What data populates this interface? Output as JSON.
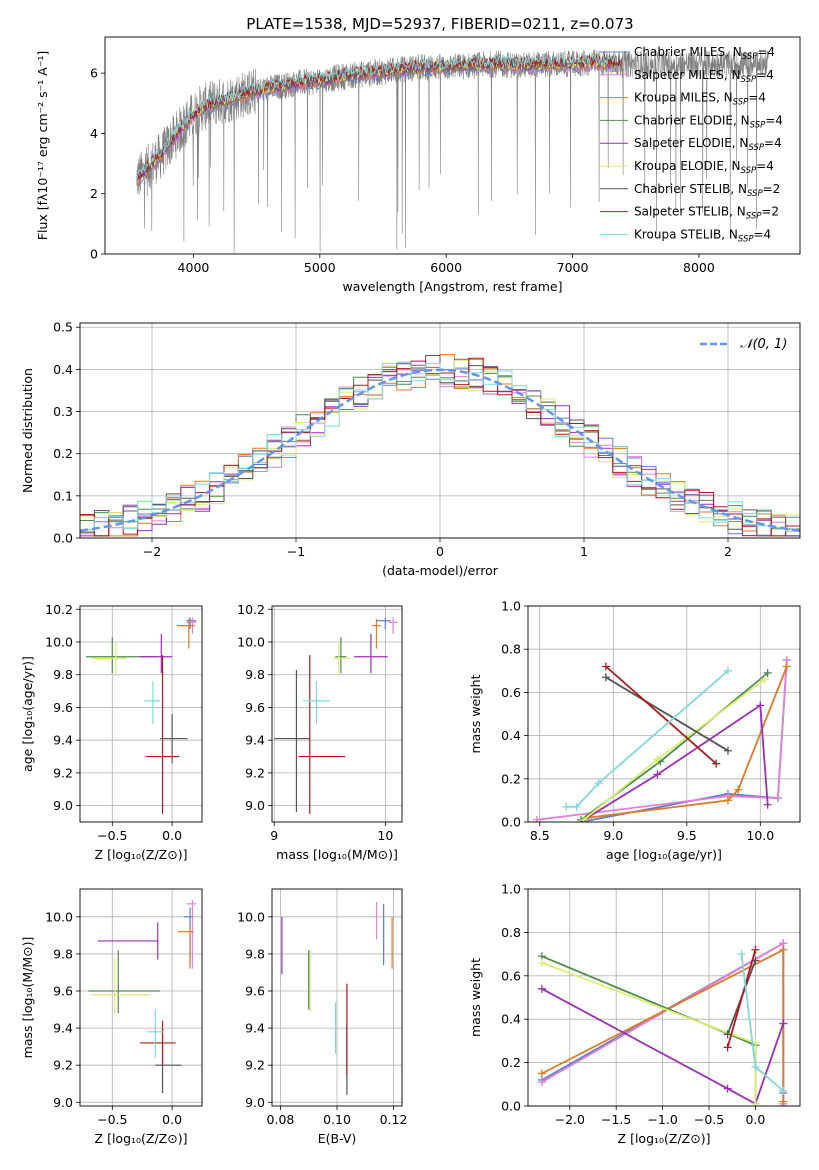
{
  "title": "PLATE=1538, MJD=52937, FIBERID=0211, z=0.073",
  "colors": {
    "chabrier_miles": "#5a7fcf",
    "salpeter_miles": "#e57ed8",
    "kroupa_miles": "#e07a22",
    "chabrier_elodie": "#4f8a4f",
    "salpeter_elodie": "#9b30b5",
    "kroupa_elodie": "#d8ef6e",
    "chabrier_stelib": "#555555",
    "salpeter_stelib": "#b5171c",
    "kroupa_stelib": "#7fd8dc",
    "data": "#808080",
    "normal": "#6495ed",
    "grid": "#b0b0b0"
  },
  "chart_data": [
    {
      "type": "line",
      "name": "spectrum",
      "xlabel": "wavelength [Angstrom, rest frame]",
      "ylabel": "Flux [fλ10⁻¹⁷ erg cm⁻² s⁻¹ A⁻¹]",
      "xlim": [
        3300,
        8800
      ],
      "ylim": [
        0,
        7.2
      ],
      "xticks": [
        4000,
        5000,
        6000,
        7000,
        8000
      ],
      "yticks": [
        0,
        2,
        4,
        6
      ],
      "grid": false,
      "legend": "top-right",
      "legend_entries": [
        "Chabrier MILES, N_SSP=4",
        "Salpeter MILES, N_SSP=4",
        "Kroupa MILES, N_SSP=4",
        "Chabrier ELODIE, N_SSP=4",
        "Salpeter ELODIE, N_SSP=4",
        "Kroupa ELODIE, N_SSP=4",
        "Chabrier STELIB, N_SSP=2",
        "Salpeter STELIB, N_SSP=2",
        "Kroupa STELIB, N_SSP=4"
      ],
      "continuum": {
        "x": [
          3550,
          3650,
          3750,
          3850,
          3950,
          4050,
          4150,
          4250,
          4400,
          4600,
          4800,
          5000,
          5200,
          5400,
          5600,
          5800,
          6000,
          6200,
          6400,
          6600,
          6800,
          7000,
          7200,
          7400
        ],
        "y": [
          2.5,
          2.9,
          3.3,
          3.9,
          4.4,
          4.8,
          5.0,
          5.1,
          5.3,
          5.5,
          5.65,
          5.75,
          5.9,
          6.0,
          6.1,
          6.2,
          6.2,
          6.25,
          6.3,
          6.25,
          6.3,
          6.3,
          6.35,
          6.3
        ]
      },
      "data_range": [
        3550,
        8550
      ]
    },
    {
      "type": "histogram",
      "name": "residuals",
      "xlabel": "(data-model)/error",
      "ylabel": "Normed distribution",
      "xlim": [
        -2.5,
        2.5
      ],
      "ylim": [
        0,
        0.51
      ],
      "xticks": [
        -2,
        -1,
        0,
        1,
        2
      ],
      "yticks": [
        0.0,
        0.1,
        0.2,
        0.3,
        0.4,
        0.5
      ],
      "grid": true,
      "legend": "top-right",
      "legend_entries": [
        "𝒩(0, 1)"
      ],
      "bin_width": 0.1,
      "normal": {
        "mean": 0,
        "sigma": 1
      }
    },
    {
      "type": "scatter",
      "name": "Z-age",
      "xlabel": "Z [log₁₀(Z/Z⊙)]",
      "ylabel": "age  [log₁₀(age/yr)]",
      "xlim": [
        -0.77,
        0.25
      ],
      "ylim": [
        8.9,
        10.22
      ],
      "xticks": [
        -0.5,
        0.0
      ],
      "yticks": [
        9.0,
        9.2,
        9.4,
        9.6,
        9.8,
        10.0,
        10.2
      ],
      "grid": true,
      "points": [
        {
          "model": "chabrier_miles",
          "x": 0.15,
          "y": 10.13,
          "xerr": [
            0.03,
            0.05
          ],
          "yerr": [
            0.05,
            0.02
          ]
        },
        {
          "model": "salpeter_miles",
          "x": 0.17,
          "y": 10.12,
          "xerr": [
            0.05,
            0.03
          ],
          "yerr": [
            0.07,
            0.03
          ]
        },
        {
          "model": "kroupa_miles",
          "x": 0.14,
          "y": 10.1,
          "xerr": [
            0.1,
            0.05
          ],
          "yerr": [
            0.14,
            0.04
          ]
        },
        {
          "model": "chabrier_elodie",
          "x": -0.5,
          "y": 9.91,
          "xerr": [
            0.22,
            0.38
          ],
          "yerr": [
            0.1,
            0.12
          ]
        },
        {
          "model": "salpeter_elodie",
          "x": -0.09,
          "y": 9.91,
          "xerr": [
            0.18,
            0.09
          ],
          "yerr": [
            0.1,
            0.14
          ]
        },
        {
          "model": "kroupa_elodie",
          "x": -0.47,
          "y": 9.9,
          "xerr": [
            0.2,
            0.09
          ],
          "yerr": [
            0.1,
            0.1
          ]
        },
        {
          "model": "chabrier_stelib",
          "x": 0.0,
          "y": 9.41,
          "xerr": [
            0.1,
            0.13
          ],
          "yerr": [
            0.15,
            0.15
          ]
        },
        {
          "model": "salpeter_stelib",
          "x": -0.08,
          "y": 9.3,
          "xerr": [
            0.14,
            0.14
          ],
          "yerr": [
            0.35,
            0.62
          ]
        },
        {
          "model": "kroupa_stelib",
          "x": -0.16,
          "y": 9.64,
          "xerr": [
            0.07,
            0.06
          ],
          "yerr": [
            0.14,
            0.12
          ]
        }
      ]
    },
    {
      "type": "scatter",
      "name": "mass-age",
      "xlabel": "mass [log₁₀(M/M⊙)]",
      "ylabel": "",
      "xlim": [
        8.98,
        10.15
      ],
      "ylim": [
        8.9,
        10.22
      ],
      "xticks": [
        9,
        10
      ],
      "yticks": [
        9.0,
        9.2,
        9.4,
        9.6,
        9.8,
        10.0,
        10.2
      ],
      "grid": true,
      "points": [
        {
          "model": "chabrier_miles",
          "x": 10.0,
          "y": 10.13,
          "xerr": [
            0.08,
            0.05
          ],
          "yerr": [
            0.05,
            0.02
          ]
        },
        {
          "model": "salpeter_miles",
          "x": 10.07,
          "y": 10.12,
          "xerr": [
            0.04,
            0.04
          ],
          "yerr": [
            0.07,
            0.03
          ]
        },
        {
          "model": "kroupa_miles",
          "x": 9.92,
          "y": 10.1,
          "xerr": [
            0.04,
            0.04
          ],
          "yerr": [
            0.14,
            0.04
          ]
        },
        {
          "model": "chabrier_elodie",
          "x": 9.6,
          "y": 9.91,
          "xerr": [
            0.05,
            0.05
          ],
          "yerr": [
            0.1,
            0.12
          ]
        },
        {
          "model": "salpeter_elodie",
          "x": 9.87,
          "y": 9.91,
          "xerr": [
            0.15,
            0.15
          ],
          "yerr": [
            0.1,
            0.14
          ]
        },
        {
          "model": "kroupa_elodie",
          "x": 9.58,
          "y": 9.9,
          "xerr": [
            0.05,
            0.1
          ],
          "yerr": [
            0.1,
            0.1
          ]
        },
        {
          "model": "chabrier_stelib",
          "x": 9.2,
          "y": 9.41,
          "xerr": [
            0.2,
            0.12
          ],
          "yerr": [
            0.45,
            0.42
          ]
        },
        {
          "model": "salpeter_stelib",
          "x": 9.32,
          "y": 9.3,
          "xerr": [
            0.1,
            0.32
          ],
          "yerr": [
            0.35,
            0.62
          ]
        },
        {
          "model": "kroupa_stelib",
          "x": 9.38,
          "y": 9.64,
          "xerr": [
            0.12,
            0.12
          ],
          "yerr": [
            0.14,
            0.12
          ]
        }
      ]
    },
    {
      "type": "line",
      "name": "age-weight",
      "xlabel": "age  [log₁₀(age/yr)]",
      "ylabel": "mass weight",
      "xlim": [
        8.42,
        10.27
      ],
      "ylim": [
        0,
        1.0
      ],
      "xticks": [
        8.5,
        9.0,
        9.5,
        10.0
      ],
      "yticks": [
        0.0,
        0.2,
        0.4,
        0.6,
        0.8,
        1.0
      ],
      "grid": true,
      "series": [
        {
          "model": "chabrier_miles",
          "x": [
            8.78,
            9.78,
            10.12,
            10.18
          ],
          "y": [
            0.0,
            0.13,
            0.11,
            0.75
          ]
        },
        {
          "model": "salpeter_miles",
          "x": [
            8.48,
            9.78,
            10.12,
            10.18
          ],
          "y": [
            0.01,
            0.12,
            0.11,
            0.75
          ]
        },
        {
          "model": "kroupa_miles",
          "x": [
            8.83,
            9.78,
            9.85,
            10.18
          ],
          "y": [
            0.02,
            0.1,
            0.15,
            0.72
          ]
        },
        {
          "model": "chabrier_elodie",
          "x": [
            8.78,
            9.32,
            10.05
          ],
          "y": [
            0.01,
            0.28,
            0.69
          ]
        },
        {
          "model": "salpeter_elodie",
          "x": [
            8.8,
            9.3,
            10.0,
            10.05
          ],
          "y": [
            0.01,
            0.22,
            0.54,
            0.08
          ]
        },
        {
          "model": "kroupa_elodie",
          "x": [
            8.8,
            9.3,
            10.03
          ],
          "y": [
            0.01,
            0.29,
            0.66
          ]
        },
        {
          "model": "chabrier_stelib",
          "x": [
            8.95,
            9.78
          ],
          "y": [
            0.67,
            0.33
          ]
        },
        {
          "model": "salpeter_stelib",
          "x": [
            8.95,
            9.7
          ],
          "y": [
            0.72,
            0.27
          ]
        },
        {
          "model": "kroupa_stelib",
          "x": [
            8.68,
            8.75,
            8.9,
            9.78
          ],
          "y": [
            0.07,
            0.07,
            0.18,
            0.7
          ]
        }
      ]
    },
    {
      "type": "scatter",
      "name": "Z-mass",
      "xlabel": "Z [log₁₀(Z/Z⊙)]",
      "ylabel": "mass [log₁₀(M/M⊙)]",
      "xlim": [
        -0.77,
        0.25
      ],
      "ylim": [
        8.98,
        10.15
      ],
      "xticks": [
        -0.5,
        0.0
      ],
      "yticks": [
        9.0,
        9.2,
        9.4,
        9.6,
        9.8,
        10.0
      ],
      "grid": true,
      "points": [
        {
          "model": "chabrier_miles",
          "x": 0.15,
          "y": 10.0,
          "xerr": [
            0.05,
            0.03
          ],
          "yerr": [
            0.26,
            0.05
          ]
        },
        {
          "model": "salpeter_miles",
          "x": 0.17,
          "y": 10.07,
          "xerr": [
            0.05,
            0.03
          ],
          "yerr": [
            0.35,
            0.02
          ]
        },
        {
          "model": "kroupa_miles",
          "x": 0.15,
          "y": 9.92,
          "xerr": [
            0.1,
            0.03
          ],
          "yerr": [
            0.2,
            0.02
          ]
        },
        {
          "model": "chabrier_elodie",
          "x": -0.45,
          "y": 9.6,
          "xerr": [
            0.25,
            0.35
          ],
          "yerr": [
            0.12,
            0.22
          ]
        },
        {
          "model": "salpeter_elodie",
          "x": -0.12,
          "y": 9.87,
          "xerr": [
            0.5,
            0.0
          ],
          "yerr": [
            0.1,
            0.1
          ]
        },
        {
          "model": "kroupa_elodie",
          "x": -0.48,
          "y": 9.58,
          "xerr": [
            0.2,
            0.3
          ],
          "yerr": [
            0.1,
            0.2
          ]
        },
        {
          "model": "chabrier_stelib",
          "x": -0.08,
          "y": 9.2,
          "xerr": [
            0.06,
            0.16
          ],
          "yerr": [
            0.15,
            0.2
          ]
        },
        {
          "model": "salpeter_stelib",
          "x": -0.08,
          "y": 9.32,
          "xerr": [
            0.19,
            0.11
          ],
          "yerr": [
            0.12,
            0.12
          ]
        },
        {
          "model": "kroupa_stelib",
          "x": -0.14,
          "y": 9.38,
          "xerr": [
            0.07,
            0.07
          ],
          "yerr": [
            0.14,
            0.12
          ]
        }
      ]
    },
    {
      "type": "scatter",
      "name": "ebv-mass",
      "xlabel": "E(B-V)",
      "ylabel": "",
      "xlim": [
        0.077,
        0.123
      ],
      "ylim": [
        8.98,
        10.15
      ],
      "xticks": [
        0.08,
        0.1,
        0.12
      ],
      "yticks": [
        9.0,
        9.2,
        9.4,
        9.6,
        9.8,
        10.0
      ],
      "grid": true,
      "points": [
        {
          "model": "chabrier_miles",
          "x": 0.1165,
          "y": 9.9,
          "xerr": [
            0,
            0
          ],
          "yerr": [
            0.16,
            0.17
          ]
        },
        {
          "model": "salpeter_miles",
          "x": 0.114,
          "y": 9.94,
          "xerr": [
            0,
            0
          ],
          "yerr": [
            0.06,
            0.14
          ]
        },
        {
          "model": "kroupa_miles",
          "x": 0.1195,
          "y": 9.86,
          "xerr": [
            0,
            0
          ],
          "yerr": [
            0.14,
            0.14
          ]
        },
        {
          "model": "chabrier_elodie",
          "x": 0.09,
          "y": 9.7,
          "xerr": [
            0,
            0
          ],
          "yerr": [
            0.2,
            0.12
          ]
        },
        {
          "model": "salpeter_elodie",
          "x": 0.0805,
          "y": 9.85,
          "xerr": [
            0,
            0
          ],
          "yerr": [
            0.16,
            0.15
          ]
        },
        {
          "model": "kroupa_elodie",
          "x": 0.0905,
          "y": 9.65,
          "xerr": [
            0,
            0
          ],
          "yerr": [
            0.16,
            0.17
          ]
        },
        {
          "model": "chabrier_stelib",
          "x": 0.1035,
          "y": 9.22,
          "xerr": [
            0,
            0
          ],
          "yerr": [
            0.18,
            0.2
          ]
        },
        {
          "model": "salpeter_stelib",
          "x": 0.1035,
          "y": 9.35,
          "xerr": [
            0,
            0
          ],
          "yerr": [
            0.2,
            0.29
          ]
        },
        {
          "model": "kroupa_stelib",
          "x": 0.0995,
          "y": 9.4,
          "xerr": [
            0,
            0
          ],
          "yerr": [
            0.14,
            0.14
          ]
        }
      ]
    },
    {
      "type": "line",
      "name": "Z-weight",
      "xlabel": "Z [log₁₀(Z/Z⊙)]",
      "ylabel": "mass weight",
      "xlim": [
        -2.45,
        0.48
      ],
      "ylim": [
        0,
        1.0
      ],
      "xticks": [
        -2.0,
        -1.5,
        -1.0,
        -0.5,
        0.0
      ],
      "yticks": [
        0.0,
        0.2,
        0.4,
        0.6,
        0.8,
        1.0
      ],
      "grid": true,
      "series": [
        {
          "model": "chabrier_miles",
          "x": [
            -2.3,
            0.3,
            0.3,
            0.3
          ],
          "y": [
            0.12,
            0.75,
            0.06,
            0.0
          ]
        },
        {
          "model": "salpeter_miles",
          "x": [
            -2.3,
            0.3,
            0.3
          ],
          "y": [
            0.11,
            0.75,
            0.01
          ]
        },
        {
          "model": "kroupa_miles",
          "x": [
            -2.3,
            0.3,
            0.3
          ],
          "y": [
            0.15,
            0.72,
            0.02
          ]
        },
        {
          "model": "chabrier_elodie",
          "x": [
            -2.3,
            0.0,
            0.0
          ],
          "y": [
            0.69,
            0.28,
            0.01
          ]
        },
        {
          "model": "salpeter_elodie",
          "x": [
            -2.3,
            -0.3,
            0.0,
            0.3
          ],
          "y": [
            0.54,
            0.08,
            0.01,
            0.38
          ]
        },
        {
          "model": "kroupa_elodie",
          "x": [
            -2.3,
            0.0,
            0.0
          ],
          "y": [
            0.66,
            0.29,
            0.01
          ]
        },
        {
          "model": "chabrier_stelib",
          "x": [
            -0.3,
            0.0
          ],
          "y": [
            0.33,
            0.67
          ]
        },
        {
          "model": "salpeter_stelib",
          "x": [
            -0.3,
            0.0
          ],
          "y": [
            0.27,
            0.72
          ]
        },
        {
          "model": "kroupa_stelib",
          "x": [
            -0.15,
            0.0,
            0.3
          ],
          "y": [
            0.7,
            0.18,
            0.07
          ]
        }
      ]
    }
  ]
}
